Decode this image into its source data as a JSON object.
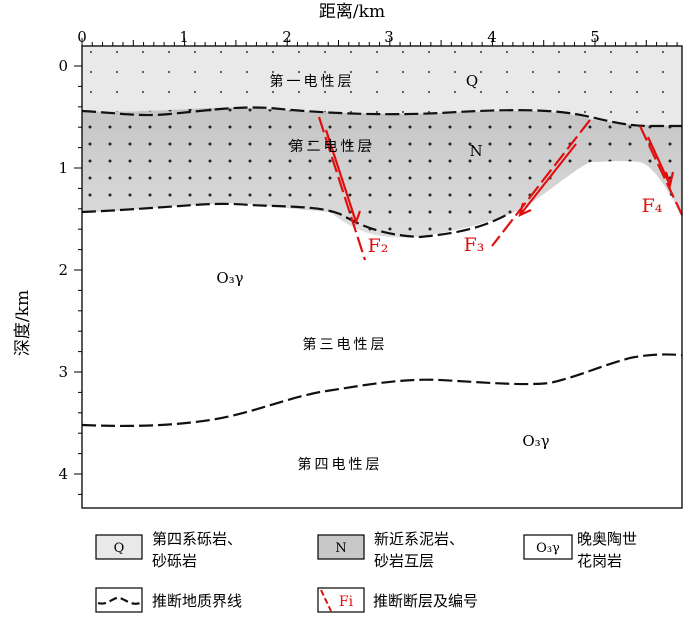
{
  "axes": {
    "x_title": "距离/km",
    "y_title": "深度/km",
    "x_ticks": [
      "0",
      "1",
      "2",
      "3",
      "4",
      "5"
    ],
    "y_ticks": [
      "0",
      "1",
      "2",
      "3",
      "4"
    ]
  },
  "layers": {
    "layer1": "第一电性层",
    "layer2": "第二电性层",
    "layer3": "第三电性层",
    "layer4": "第四电性层"
  },
  "units": {
    "q": "Q",
    "n": "N",
    "o3y_upper": "O₃γ",
    "o3y_lower": "O₃γ"
  },
  "faults": {
    "f2": "F₂",
    "f3": "F₃",
    "f4": "F₄"
  },
  "legend": {
    "q_symbol": "Q",
    "q_line1": "第四系砾岩、",
    "q_line2": "砂砾岩",
    "n_symbol": "N",
    "n_line1": "新近系泥岩、",
    "n_line2": "砂岩互层",
    "o_symbol": "O₃γ",
    "o_line1": "晚奥陶世",
    "o_line2": "花岗岩",
    "boundary_label": "推断地质界线",
    "fault_symbol": "Fi",
    "fault_label": "推断断层及编号"
  },
  "colors": {
    "layer1_fill": "#e9e9e9",
    "layer2_fill": "#d2d2d2",
    "fault": "#e01010",
    "boundary": "#111111"
  }
}
